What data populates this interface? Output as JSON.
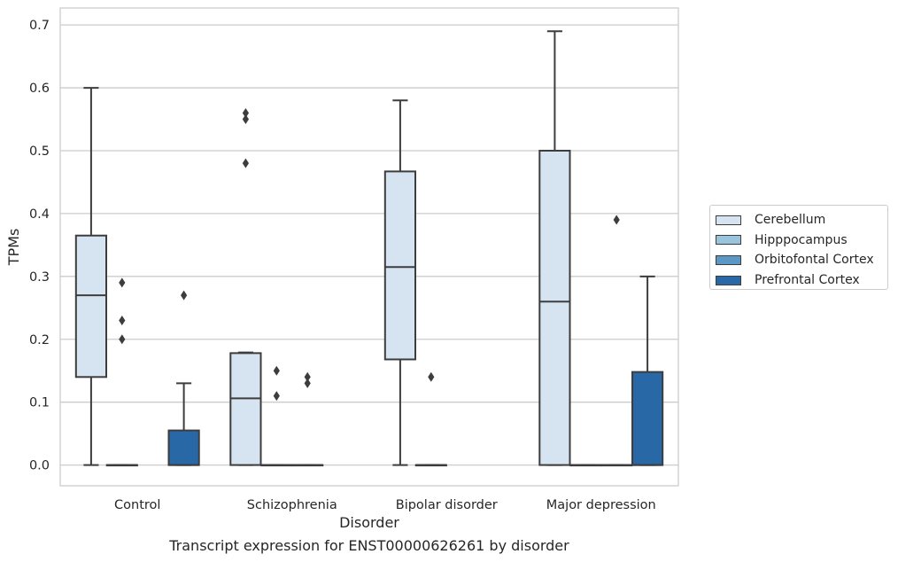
{
  "chart_data": {
    "type": "box",
    "title": "",
    "caption": "Transcript expression for ENST00000626261 by disorder",
    "xlabel": "Disorder",
    "ylabel": "TPMs",
    "ylim": [
      -0.033,
      0.727
    ],
    "yticks": [
      0.0,
      0.1,
      0.2,
      0.3,
      0.4,
      0.5,
      0.6,
      0.7
    ],
    "ytick_labels": [
      "0.0",
      "0.1",
      "0.2",
      "0.3",
      "0.4",
      "0.5",
      "0.6",
      "0.7"
    ],
    "categories": [
      "Control",
      "Schizophrenia",
      "Bipolar disorder",
      "Major depression"
    ],
    "grid": "horizontal",
    "legend_position": "right",
    "series": [
      {
        "name": "Cerebellum",
        "color": "#d6e4f1",
        "boxes": [
          {
            "whisker_low": 0.0,
            "q1": 0.14,
            "median": 0.27,
            "q3": 0.365,
            "whisker_high": 0.6,
            "outliers": []
          },
          {
            "whisker_low": 0.0,
            "q1": 0.0,
            "median": 0.106,
            "q3": 0.178,
            "whisker_high": 0.179,
            "outliers": [
              0.48,
              0.55,
              0.56
            ]
          },
          {
            "whisker_low": 0.0,
            "q1": 0.168,
            "median": 0.315,
            "q3": 0.467,
            "whisker_high": 0.58,
            "outliers": []
          },
          {
            "whisker_low": 0.0,
            "q1": 0.0,
            "median": 0.26,
            "q3": 0.5,
            "whisker_high": 0.69,
            "outliers": []
          }
        ]
      },
      {
        "name": "Hipppocampus",
        "color": "#9ac4de",
        "boxes": [
          {
            "whisker_low": 0.0,
            "q1": 0.0,
            "median": 0.0,
            "q3": 0.0,
            "whisker_high": 0.0,
            "outliers": [
              0.2,
              0.23,
              0.29
            ]
          },
          {
            "whisker_low": 0.0,
            "q1": 0.0,
            "median": 0.0,
            "q3": 0.0,
            "whisker_high": 0.0,
            "outliers": [
              0.11,
              0.15
            ]
          },
          {
            "whisker_low": 0.0,
            "q1": 0.0,
            "median": 0.0,
            "q3": 0.0,
            "whisker_high": 0.0,
            "outliers": [
              0.14
            ]
          },
          {
            "whisker_low": 0.0,
            "q1": 0.0,
            "median": 0.0,
            "q3": 0.0,
            "whisker_high": 0.0,
            "outliers": []
          }
        ]
      },
      {
        "name": "Orbitofontal Cortex",
        "color": "#5b98c5",
        "boxes": [
          null,
          {
            "whisker_low": 0.0,
            "q1": 0.0,
            "median": 0.0,
            "q3": 0.0,
            "whisker_high": 0.0,
            "outliers": [
              0.13,
              0.14
            ]
          },
          null,
          {
            "whisker_low": 0.0,
            "q1": 0.0,
            "median": 0.0,
            "q3": 0.0,
            "whisker_high": 0.0,
            "outliers": [
              0.39
            ]
          }
        ]
      },
      {
        "name": "Prefrontal Cortex",
        "color": "#2868a6",
        "boxes": [
          {
            "whisker_low": 0.0,
            "q1": 0.0,
            "median": 0.0,
            "q3": 0.055,
            "whisker_high": 0.13,
            "outliers": [
              0.27
            ]
          },
          null,
          null,
          {
            "whisker_low": 0.0,
            "q1": 0.0,
            "median": 0.0,
            "q3": 0.148,
            "whisker_high": 0.3,
            "outliers": []
          }
        ]
      }
    ]
  }
}
